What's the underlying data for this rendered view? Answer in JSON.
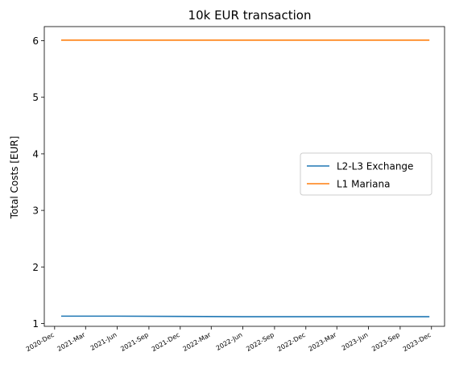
{
  "chart_data": {
    "type": "line",
    "title": "10k EUR transaction",
    "xlabel": "",
    "ylabel": "Total Costs [EUR]",
    "x_ticks": [
      "2020-Dec",
      "2021-Mar",
      "2021-Jun",
      "2021-Sep",
      "2021-Dec",
      "2022-Mar",
      "2022-Jun",
      "2022-Sep",
      "2022-Dec",
      "2023-Mar",
      "2023-Jun",
      "2023-Sep",
      "2023-Dec"
    ],
    "y_ticks": [
      1,
      2,
      3,
      4,
      5,
      6
    ],
    "ylim": [
      0.95,
      6.25
    ],
    "xlim": [
      "2020-11-01",
      "2024-01-08"
    ],
    "grid": false,
    "legend_position": "center-right",
    "series": [
      {
        "name": "L2-L3 Exchange",
        "color": "#1f77b4",
        "x": [
          "2020-12-20",
          "2021-06-01",
          "2021-12-01",
          "2022-06-01",
          "2022-12-01",
          "2023-06-01",
          "2023-11-25"
        ],
        "y": [
          1.13,
          1.13,
          1.125,
          1.12,
          1.12,
          1.12,
          1.12
        ]
      },
      {
        "name": "L1 Mariana",
        "color": "#ff7f0e",
        "x": [
          "2020-12-20",
          "2021-06-01",
          "2021-12-01",
          "2022-06-01",
          "2022-12-01",
          "2023-06-01",
          "2023-11-25"
        ],
        "y": [
          6.01,
          6.01,
          6.01,
          6.01,
          6.01,
          6.01,
          6.01
        ]
      }
    ]
  }
}
